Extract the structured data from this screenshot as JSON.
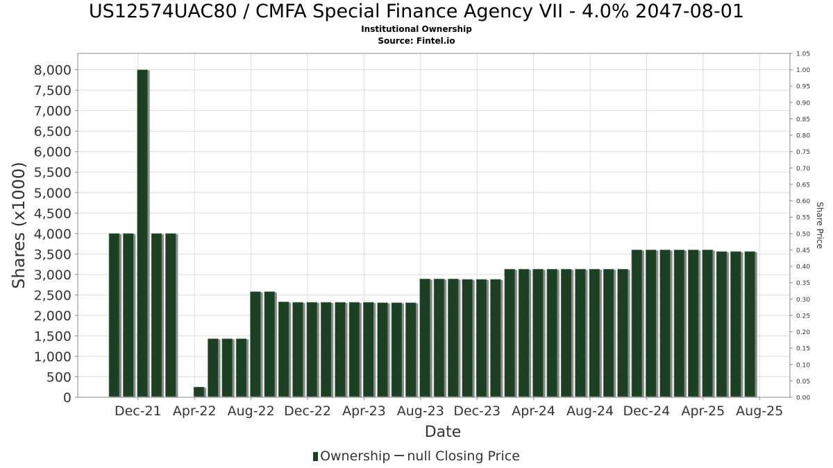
{
  "chart_data": {
    "type": "bar",
    "title": "US12574UAC80 / CMFA Special Finance Agency VII - 4.0% 2047-08-01",
    "subtitle": "Institutional Ownership",
    "source": "Source: Fintel.io",
    "xlabel": "Date",
    "ylabel": "Shares (x1000)",
    "y2label": "Share Price",
    "ylim": [
      0,
      8400
    ],
    "y2lim": [
      0,
      1.05
    ],
    "yticks": [
      "0",
      "500",
      "1,000",
      "1,500",
      "2,000",
      "2,500",
      "3,000",
      "3,500",
      "4,000",
      "4,500",
      "5,000",
      "5,500",
      "6,000",
      "6,500",
      "7,000",
      "7,500",
      "8,000"
    ],
    "y2ticks": [
      "0.00",
      "0.05",
      "0.10",
      "0.15",
      "0.20",
      "0.25",
      "0.30",
      "0.35",
      "0.40",
      "0.45",
      "0.50",
      "0.55",
      "0.60",
      "0.65",
      "0.70",
      "0.75",
      "0.80",
      "0.85",
      "0.90",
      "0.95",
      "1.00",
      "1.05"
    ],
    "xtick_labels": [
      "Dec-21",
      "Apr-22",
      "Aug-22",
      "Dec-22",
      "Apr-23",
      "Aug-23",
      "Dec-23",
      "Apr-24",
      "Aug-24",
      "Dec-24",
      "Apr-25",
      "Aug-25"
    ],
    "grid": true,
    "legend_position": "bottom",
    "legend": [
      "Ownership",
      "null Closing Price"
    ],
    "colors": {
      "bar": "#1d4025",
      "bar_shadow": "#8a8a8a",
      "grid": "#dddddd",
      "frame": "#888888"
    },
    "series": [
      {
        "name": "Ownership",
        "values": [
          4000,
          4000,
          8000,
          4000,
          4000,
          0,
          250,
          1430,
          1430,
          1430,
          2580,
          2580,
          2330,
          2320,
          2320,
          2320,
          2320,
          2320,
          2320,
          2310,
          2310,
          2310,
          2890,
          2890,
          2890,
          2880,
          2880,
          2880,
          3130,
          3130,
          3130,
          3130,
          3130,
          3130,
          3130,
          3130,
          3130,
          3600,
          3600,
          3600,
          3600,
          3600,
          3600,
          3560,
          3560,
          3560
        ]
      }
    ]
  }
}
